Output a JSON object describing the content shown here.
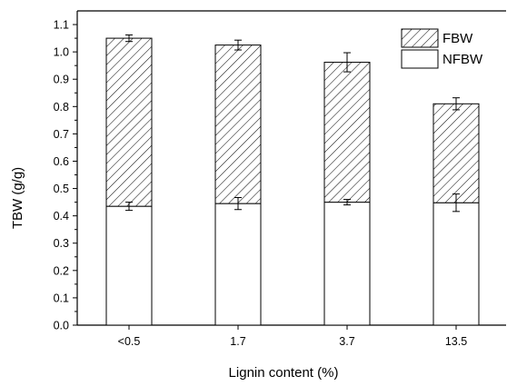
{
  "chart_data": {
    "type": "bar",
    "stacked": true,
    "categories": [
      "<0.5",
      "1.7",
      "3.7",
      "13.5"
    ],
    "series": [
      {
        "name": "NFBW",
        "values": [
          0.435,
          0.445,
          0.45,
          0.448
        ],
        "errors": [
          0.015,
          0.022,
          0.01,
          0.032
        ],
        "fill": "#ffffff",
        "pattern": "none"
      },
      {
        "name": "FBW",
        "values": [
          0.615,
          0.58,
          0.512,
          0.362
        ],
        "errors": [
          0.012,
          0.018,
          0.035,
          0.022
        ],
        "fill": "#ffffff",
        "pattern": "diagonal-hatch"
      }
    ],
    "xlabel": "Lignin content (%)",
    "ylabel": "TBW (g/g)",
    "ylim": [
      0,
      1.15
    ],
    "yticks": [
      "0.0",
      "0.1",
      "0.2",
      "0.3",
      "0.4",
      "0.5",
      "0.6",
      "0.7",
      "0.8",
      "0.9",
      "1.0",
      "1.1"
    ],
    "legend": {
      "placement": "top-right",
      "entries": [
        "FBW",
        "NFBW"
      ]
    },
    "grid": false,
    "colors": {
      "stroke": "#000000",
      "background": "#ffffff"
    }
  }
}
